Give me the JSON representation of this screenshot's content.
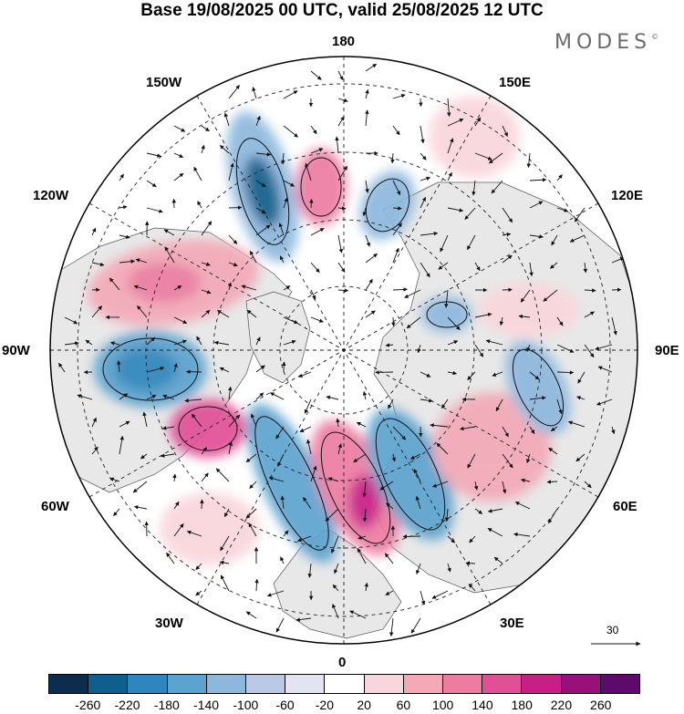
{
  "title": "Base 19/08/2025 00 UTC, valid 25/08/2025 12 UTC",
  "brand": "MODES",
  "brand_mark": "©",
  "longitude_labels": {
    "top": "180",
    "bottom": "0",
    "left": "90W",
    "right": "90E",
    "upper_left": "150W",
    "upper_right": "150E",
    "mid_left_upper": "120W",
    "mid_right_upper": "120E",
    "mid_left_lower": "60W",
    "mid_right_lower": "60E",
    "lower_left": "30W",
    "lower_right": "30E"
  },
  "vector_reference": {
    "label": "30"
  },
  "colorbar": {
    "colors": [
      "#0b2e4f",
      "#0f5f8c",
      "#2f86bd",
      "#5da3cf",
      "#8db8de",
      "#bcc9e6",
      "#e2e4f2",
      "#ffffff",
      "#f9d6db",
      "#f3a9b7",
      "#ec7ca2",
      "#e14f96",
      "#c81f86",
      "#98117a",
      "#5e0a6c"
    ],
    "labels": [
      "-260",
      "-220",
      "-180",
      "-140",
      "-100",
      "-60",
      "-20",
      "20",
      "60",
      "100",
      "140",
      "180",
      "220",
      "260"
    ]
  },
  "anomaly_features": [
    {
      "name": "north-pacific-low",
      "sign": "negative",
      "level": -220
    },
    {
      "name": "north-canada-high",
      "sign": "positive",
      "level": 140
    },
    {
      "name": "east-siberia-low",
      "sign": "negative",
      "level": -100
    },
    {
      "name": "hudson-low",
      "sign": "negative",
      "level": -180
    },
    {
      "name": "labrador-high",
      "sign": "positive",
      "level": 180
    },
    {
      "name": "atlantic-low",
      "sign": "negative",
      "level": -140
    },
    {
      "name": "europe-high",
      "sign": "positive",
      "level": 180
    },
    {
      "name": "scandinavia-low",
      "sign": "negative",
      "level": -180
    },
    {
      "name": "west-siberia-high",
      "sign": "positive",
      "level": 140
    },
    {
      "name": "central-asia-low",
      "sign": "negative",
      "level": -100
    }
  ]
}
